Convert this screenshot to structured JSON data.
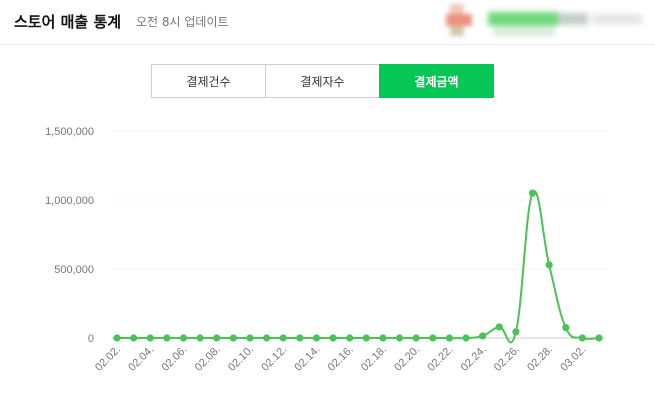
{
  "header": {
    "title": "스토어 매출 통계",
    "subtitle": "오전 8시 업데이트"
  },
  "tabs": [
    {
      "label": "결제건수",
      "active": false
    },
    {
      "label": "결제자수",
      "active": false
    },
    {
      "label": "결제금액",
      "active": true
    }
  ],
  "colors": {
    "accent": "#06c755",
    "line": "#4bc158",
    "grid": "#dddddd"
  },
  "chart_data": {
    "type": "line",
    "title": "",
    "xlabel": "",
    "ylabel": "",
    "ylim": [
      0,
      1500000
    ],
    "y_ticks": [
      {
        "value": 0,
        "label": "0"
      },
      {
        "value": 500000,
        "label": "500,000"
      },
      {
        "value": 1000000,
        "label": "1,000,000"
      },
      {
        "value": 1500000,
        "label": "1,500,000"
      }
    ],
    "x_tick_labels": [
      "02.02.",
      "02.04.",
      "02.06.",
      "02.08.",
      "02.10.",
      "02.12.",
      "02.14.",
      "02.16.",
      "02.18.",
      "02.20.",
      "02.22.",
      "02.24.",
      "02.26.",
      "02.28.",
      "03.02."
    ],
    "grid": "horizontal dotted",
    "x": [
      "02.02.",
      "02.03.",
      "02.04.",
      "02.05.",
      "02.06.",
      "02.07.",
      "02.08.",
      "02.09.",
      "02.10.",
      "02.11.",
      "02.12.",
      "02.13.",
      "02.14.",
      "02.15.",
      "02.16.",
      "02.17.",
      "02.18.",
      "02.19.",
      "02.20.",
      "02.21.",
      "02.22.",
      "02.23.",
      "02.24.",
      "02.25.",
      "02.26.",
      "02.27.",
      "02.28.",
      "03.01.",
      "03.02.",
      "03.03."
    ],
    "values": [
      0,
      0,
      0,
      0,
      0,
      0,
      0,
      0,
      0,
      0,
      0,
      0,
      0,
      0,
      0,
      0,
      0,
      0,
      0,
      0,
      0,
      0,
      15000,
      80000,
      45000,
      1050000,
      530000,
      75000,
      0,
      0
    ]
  }
}
